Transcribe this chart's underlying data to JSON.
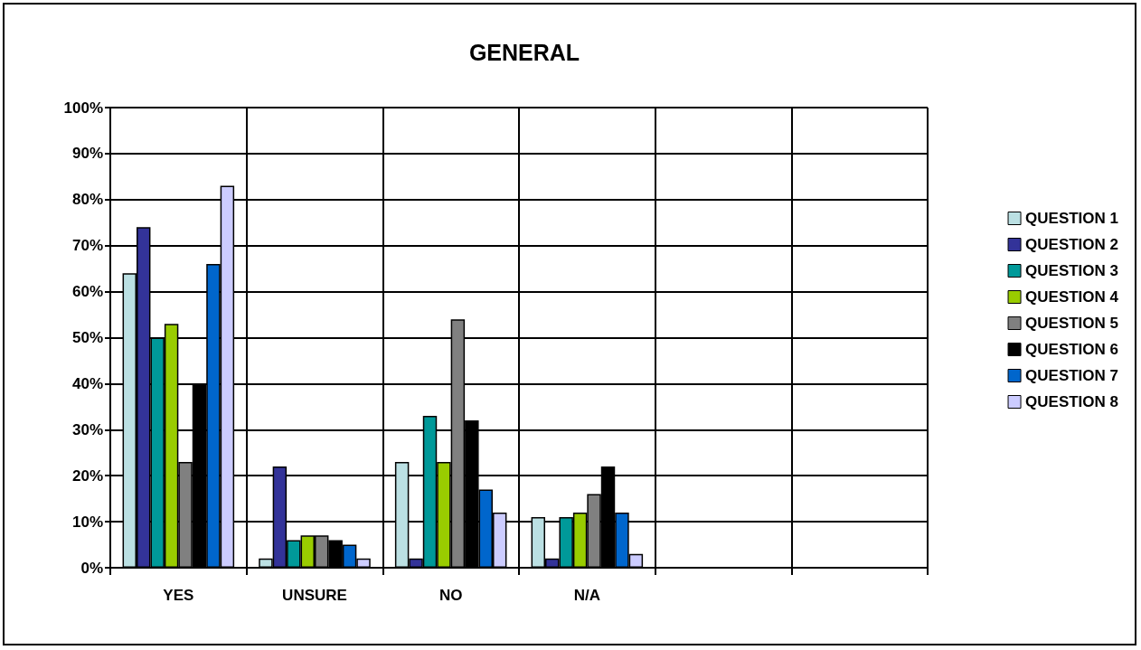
{
  "chart_data": {
    "type": "bar",
    "title": "GENERAL",
    "categories": [
      "YES",
      "UNSURE",
      "NO",
      "N/A",
      null,
      null
    ],
    "series": [
      {
        "name": "QUESTION 1",
        "color": "#bbe0e3",
        "values": [
          64,
          2,
          23,
          11,
          null,
          null
        ]
      },
      {
        "name": "QUESTION 2",
        "color": "#333399",
        "values": [
          74,
          22,
          2,
          2,
          null,
          null
        ]
      },
      {
        "name": "QUESTION 3",
        "color": "#009999",
        "values": [
          50,
          6,
          33,
          11,
          null,
          null
        ]
      },
      {
        "name": "QUESTION 4",
        "color": "#99cc00",
        "values": [
          53,
          7,
          23,
          12,
          null,
          null
        ]
      },
      {
        "name": "QUESTION 5",
        "color": "#808080",
        "values": [
          23,
          7,
          54,
          16,
          null,
          null
        ]
      },
      {
        "name": "QUESTION 6",
        "color": "#000000",
        "values": [
          40,
          6,
          32,
          22,
          null,
          null
        ]
      },
      {
        "name": "QUESTION 7",
        "color": "#0066cc",
        "values": [
          66,
          5,
          17,
          12,
          null,
          null
        ]
      },
      {
        "name": "QUESTION 8",
        "color": "#ccccff",
        "values": [
          83,
          2,
          12,
          3,
          null,
          null
        ]
      }
    ],
    "ylim": [
      0,
      100
    ],
    "yticks": [
      {
        "value": 0,
        "label": "0%"
      },
      {
        "value": 10,
        "label": "10%"
      },
      {
        "value": 20,
        "label": "20%"
      },
      {
        "value": 30,
        "label": "30%"
      },
      {
        "value": 40,
        "label": "40%"
      },
      {
        "value": 50,
        "label": "50%"
      },
      {
        "value": 60,
        "label": "60%"
      },
      {
        "value": 70,
        "label": "70%"
      },
      {
        "value": 80,
        "label": "80%"
      },
      {
        "value": 90,
        "label": "90%"
      },
      {
        "value": 100,
        "label": "100%"
      }
    ],
    "grid": true,
    "legend": "right"
  }
}
